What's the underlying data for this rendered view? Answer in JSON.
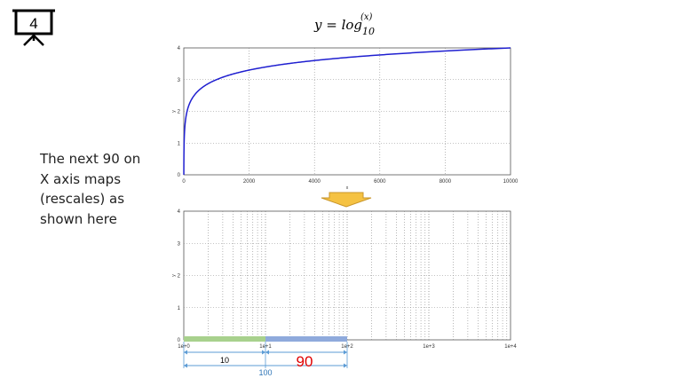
{
  "slide": {
    "badge_number": "4",
    "badge_icon": "presentation-board-icon",
    "title": {
      "prefix": "y = log",
      "subscript": "10",
      "superscript": "(x)"
    },
    "note_lines": [
      "The next 90 on",
      "X axis maps",
      "(rescales) as",
      "shown here"
    ],
    "arrow_icon": "down-arrow-icon",
    "arrow_color": "#f5c242"
  },
  "chart_data": [
    {
      "type": "line",
      "scale": "linear",
      "function": "log10(x)",
      "xlabel": "x",
      "ylabel": "y",
      "xlim": [
        0,
        10000
      ],
      "ylim": [
        0,
        4
      ],
      "x_ticks": [
        0,
        2000,
        4000,
        6000,
        8000,
        10000
      ],
      "x_tick_labels": [
        "0",
        "2000",
        "4000",
        "6000",
        "8000",
        "10000"
      ],
      "y_ticks": [
        0,
        1,
        2,
        3,
        4
      ],
      "y_tick_labels": [
        "0",
        "1",
        "2",
        "3",
        "4"
      ],
      "grid": true,
      "line_color": "#1f1fd0"
    },
    {
      "type": "line",
      "scale": "log",
      "xlabel": "",
      "ylabel": "y",
      "xlim": [
        1,
        10000
      ],
      "ylim": [
        0,
        4
      ],
      "x_ticks": [
        1,
        10,
        100,
        1000,
        10000
      ],
      "x_tick_labels": [
        "1e+0",
        "1e+1",
        "1e+2",
        "1e+3",
        "1e+4"
      ],
      "y_ticks": [
        0,
        1,
        2,
        3,
        4
      ],
      "y_tick_labels": [
        "0",
        "1",
        "2",
        "3",
        "4"
      ],
      "grid": true,
      "minor_grid": true,
      "highlights": [
        {
          "from": 1,
          "to": 10,
          "color": "#a8d18d"
        },
        {
          "from": 10,
          "to": 100,
          "color": "#8faadc"
        }
      ],
      "spans": [
        {
          "from": 1,
          "to": 10,
          "label": "10",
          "color": "#000000"
        },
        {
          "from": 10,
          "to": 100,
          "label": "90",
          "color": "#e00000"
        },
        {
          "from": 1,
          "to": 100,
          "label": "100",
          "color": "#2e75b6"
        }
      ],
      "dimension_color": "#5b9bd5"
    }
  ]
}
